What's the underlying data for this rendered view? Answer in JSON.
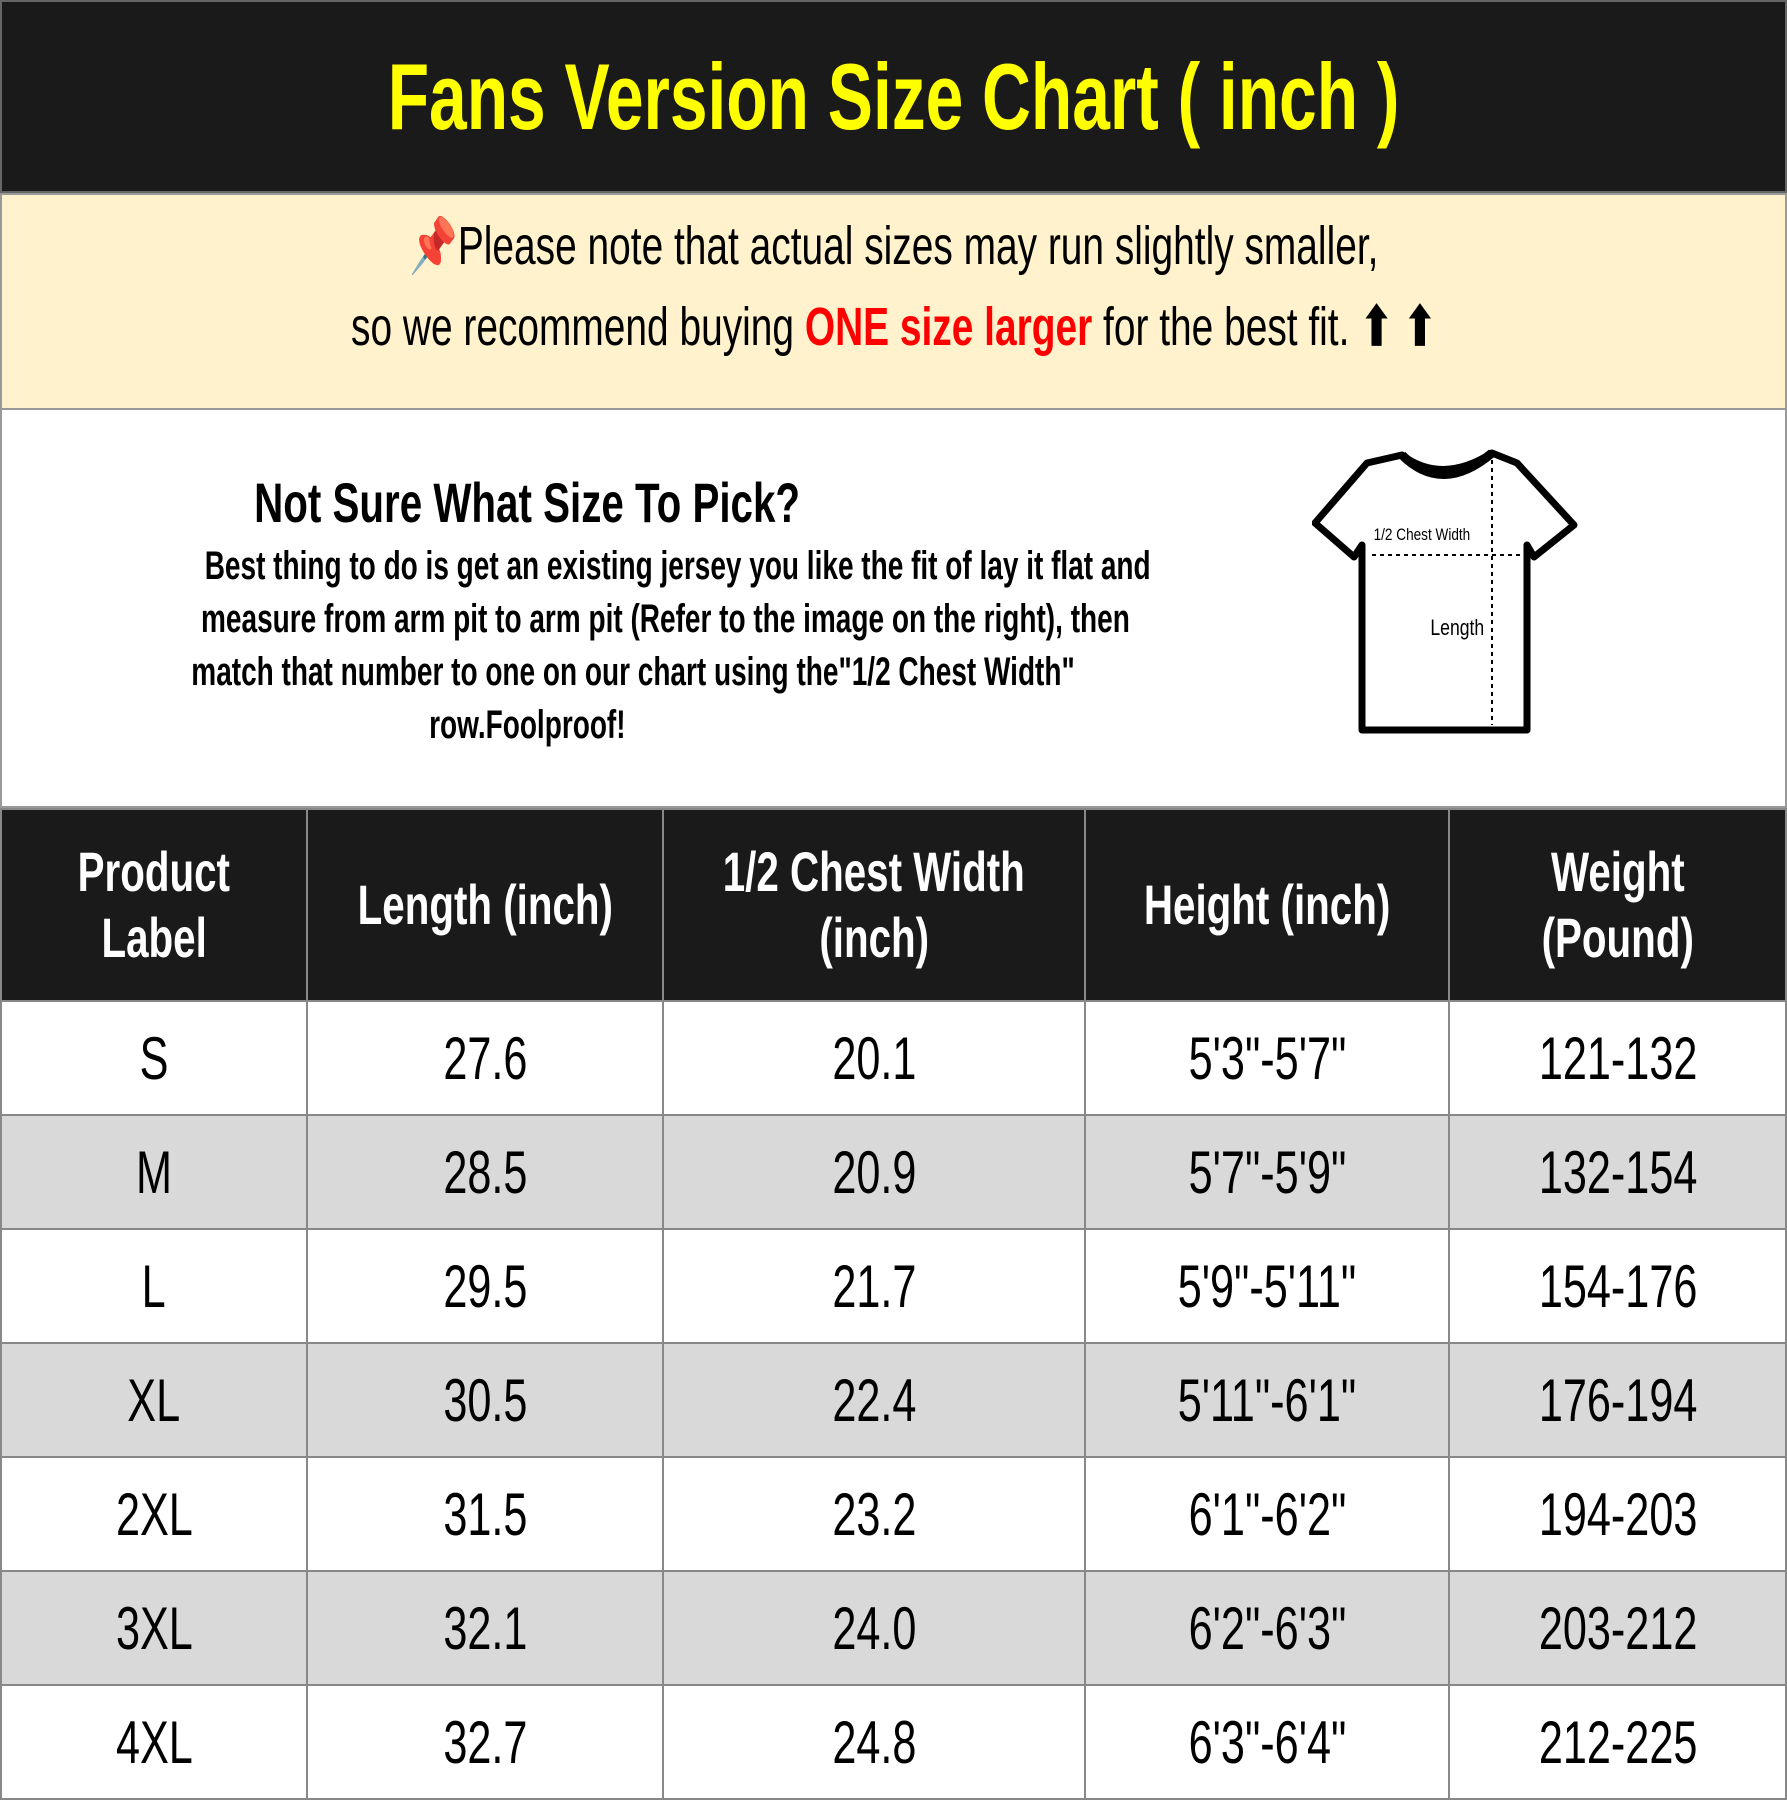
{
  "title": "Fans Version Size Chart ( inch )",
  "note": {
    "icon": "pushpin-icon",
    "line1": "Please note that actual sizes may run slightly smaller,",
    "line2_pre": "so we recommend buying ",
    "line2_highlight": "ONE size larger",
    "line2_post": " for the best fit.",
    "arrows": "⬆ ⬆",
    "highlight_color": "#ff0000",
    "background": "#fff2cc"
  },
  "info": {
    "heading": "Not Sure What Size To Pick?",
    "lines": [
      "Best thing to do is get an existing jersey you like the fit of lay it flat and",
      "measure from arm pit to arm pit (Refer to the image on the right), then",
      "match that number to one on our chart using the\"1/2 Chest Width\"",
      "row.Foolproof!"
    ],
    "diagram": {
      "chest_label": "1/2 Chest Width",
      "length_label": "Length"
    }
  },
  "table": {
    "headers": [
      [
        "Product",
        "Label"
      ],
      [
        "Length (inch)"
      ],
      [
        "1/2 Chest Width",
        "(inch)"
      ],
      [
        "Height (inch)"
      ],
      [
        "Weight",
        "(Pound)"
      ]
    ],
    "rows": [
      [
        "S",
        "27.6",
        "20.1",
        "5'3\"-5'7\"",
        "121-132"
      ],
      [
        "M",
        "28.5",
        "20.9",
        "5'7\"-5'9\"",
        "132-154"
      ],
      [
        "L",
        "29.5",
        "21.7",
        "5'9\"-5'11\"",
        "154-176"
      ],
      [
        "XL",
        "30.5",
        "22.4",
        "5'11\"-6'1\"",
        "176-194"
      ],
      [
        "2XL",
        "31.5",
        "23.2",
        "6'1\"-6'2\"",
        "194-203"
      ],
      [
        "3XL",
        "32.1",
        "24.0",
        "6'2\"-6'3\"",
        "203-212"
      ],
      [
        "4XL",
        "32.7",
        "24.8",
        "6'3\"-6'4\"",
        "212-225"
      ]
    ]
  }
}
